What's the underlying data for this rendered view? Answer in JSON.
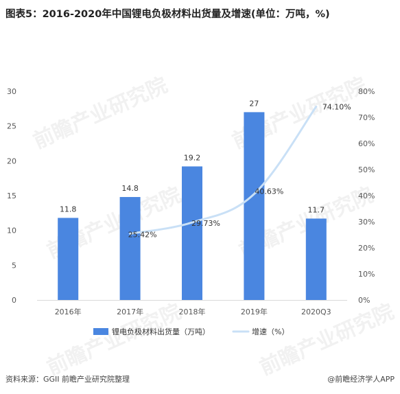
{
  "title": "图表5：2016-2020年中国锂电负极材料出货量及增速(单位：万吨，%)",
  "source": "资料来源：GGII 前瞻产业研究院整理",
  "credit": "@前瞻经济学人APP",
  "watermark": "前瞻产业研究院",
  "chart_data": {
    "type": "bar",
    "categories": [
      "2016年",
      "2017年",
      "2018年",
      "2019年",
      "2020Q3"
    ],
    "y_left": {
      "ticks": [
        "0",
        "5",
        "10",
        "15",
        "20",
        "25",
        "30"
      ],
      "range": [
        0,
        30
      ]
    },
    "y_right": {
      "ticks": [
        "0%",
        "10%",
        "20%",
        "30%",
        "40%",
        "50%",
        "60%",
        "70%",
        "80%"
      ],
      "range": [
        0,
        80
      ]
    },
    "series": [
      {
        "name": "锂电负极材料出货量（万吨）",
        "type": "bar",
        "axis": "left",
        "values": [
          11.8,
          14.8,
          19.2,
          27,
          11.7
        ],
        "labels": [
          "11.8",
          "14.8",
          "19.2",
          "27",
          "11.7"
        ],
        "color": "#4a86e0"
      },
      {
        "name": "增速（%）",
        "type": "line",
        "axis": "right",
        "values": [
          null,
          25.42,
          29.73,
          40.63,
          74.1
        ],
        "labels": [
          "",
          "25.42%",
          "29.73%",
          "40.63%",
          "74.10%"
        ],
        "color": "#c9e0f6"
      }
    ],
    "legend": "bottom",
    "grid": false
  }
}
